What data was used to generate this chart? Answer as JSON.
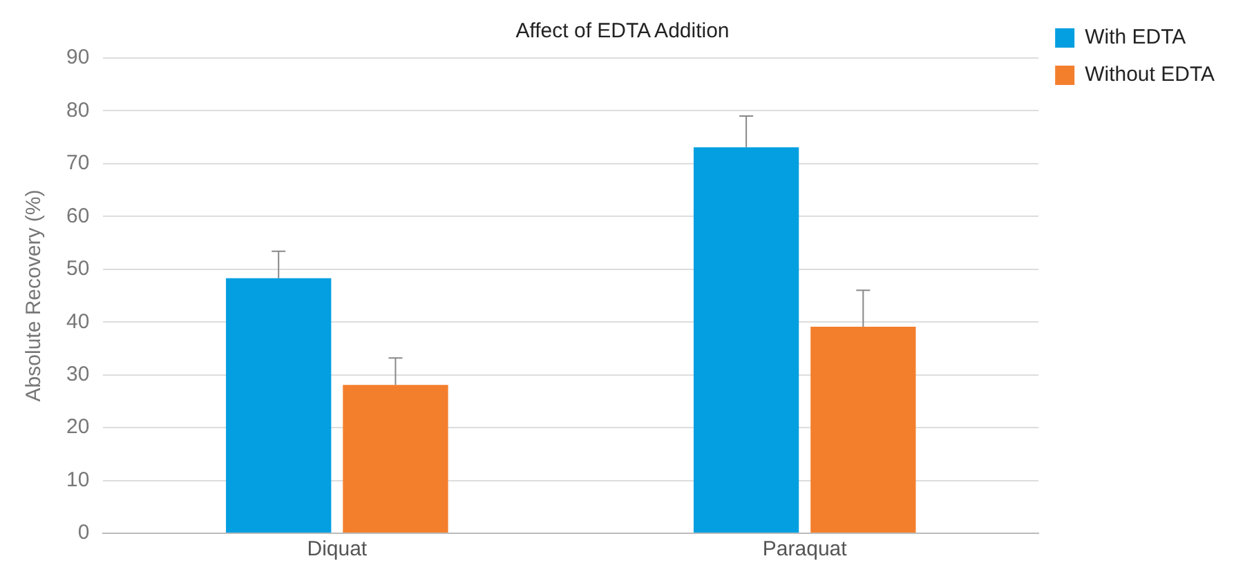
{
  "chart_data": {
    "type": "bar",
    "title": "Affect of EDTA Addition",
    "ylabel": "Absolute Recovery (%)",
    "categories": [
      "Diquat",
      "Paraquat"
    ],
    "series": [
      {
        "name": "With EDTA",
        "color": "#039fe0",
        "values": [
          48.3,
          73.1
        ],
        "errors": [
          [
            48.3,
            53.4
          ],
          [
            73.1,
            79.0
          ]
        ]
      },
      {
        "name": "Without EDTA",
        "color": "#f37f2d",
        "values": [
          28.1,
          39.1
        ],
        "errors": [
          [
            28.1,
            33.2
          ],
          [
            39.1,
            46.0
          ]
        ]
      }
    ],
    "ylim": [
      0,
      90
    ],
    "yticks": [
      0,
      10,
      20,
      30,
      40,
      50,
      60,
      70,
      80,
      90
    ],
    "grid": "y",
    "legend": "top right"
  }
}
